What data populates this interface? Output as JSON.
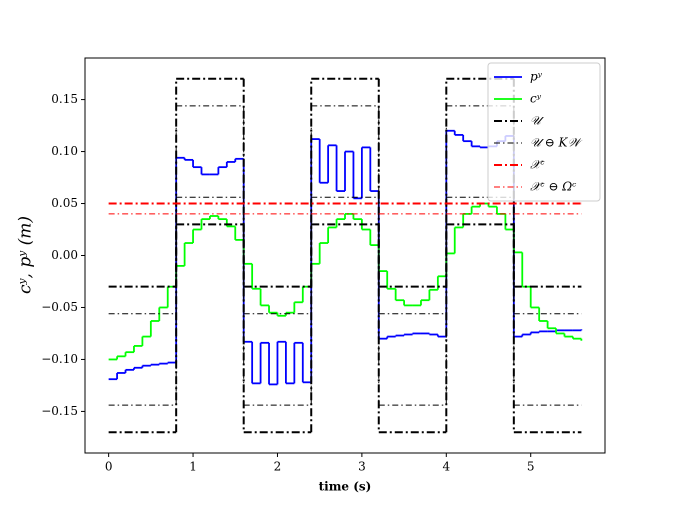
{
  "chart_data": {
    "type": "step",
    "xlabel": "time (s)",
    "ylabel": "cʸ, pʸ (m)",
    "xlim": [
      -0.28,
      5.88
    ],
    "ylim": [
      -0.19,
      0.19
    ],
    "xticks": [
      0,
      1,
      2,
      3,
      4,
      5
    ],
    "yticks": [
      {
        "value": -0.15,
        "label": "−0.15"
      },
      {
        "value": -0.1,
        "label": "−0.10"
      },
      {
        "value": -0.05,
        "label": "−0.05"
      },
      {
        "value": 0,
        "label": "0.00"
      },
      0.05,
      {
        "value": 0.1,
        "label": "0.10"
      },
      0.15
    ],
    "legend": "upper right",
    "x": [
      0,
      0.1,
      0.2,
      0.3,
      0.4,
      0.5,
      0.6,
      0.7,
      0.8,
      0.9,
      1.0,
      1.1,
      1.2,
      1.3,
      1.4,
      1.5,
      1.6,
      1.7,
      1.8,
      1.9,
      2.0,
      2.1,
      2.2,
      2.3,
      2.4,
      2.5,
      2.6,
      2.7,
      2.8,
      2.9,
      3.0,
      3.1,
      3.2,
      3.3,
      3.4,
      3.5,
      3.6,
      3.7,
      3.8,
      3.9,
      4.0,
      4.1,
      4.2,
      4.3,
      4.4,
      4.5,
      4.6,
      4.7,
      4.8,
      4.9,
      5.0,
      5.1,
      5.2,
      5.3,
      5.4,
      5.5,
      5.6
    ],
    "series": [
      {
        "name": "pʸ",
        "color": "#0000ff",
        "linestyle": "solid",
        "values": [
          -0.119,
          -0.113,
          -0.11,
          -0.108,
          -0.106,
          -0.105,
          -0.104,
          -0.103,
          0.094,
          0.092,
          0.085,
          0.078,
          0.078,
          0.085,
          0.09,
          0.093,
          -0.083,
          -0.123,
          -0.084,
          -0.124,
          -0.083,
          -0.123,
          -0.084,
          -0.122,
          0.112,
          0.07,
          0.106,
          0.062,
          0.1,
          0.055,
          0.104,
          0.062,
          -0.08,
          -0.078,
          -0.077,
          -0.076,
          -0.075,
          -0.075,
          -0.076,
          -0.078,
          0.12,
          0.116,
          0.11,
          0.105,
          0.104,
          0.105,
          0.11,
          0.115,
          -0.078,
          -0.076,
          -0.074,
          -0.073,
          -0.073,
          -0.072,
          -0.072,
          -0.072,
          -0.071
        ]
      },
      {
        "name": "cʸ",
        "color": "#00ff00",
        "linestyle": "solid",
        "values": [
          -0.1,
          -0.097,
          -0.093,
          -0.087,
          -0.078,
          -0.063,
          -0.05,
          -0.03,
          -0.01,
          0.012,
          0.025,
          0.035,
          0.038,
          0.035,
          0.028,
          0.015,
          -0.008,
          -0.032,
          -0.048,
          -0.055,
          -0.058,
          -0.055,
          -0.045,
          -0.03,
          -0.008,
          0.012,
          0.027,
          0.035,
          0.04,
          0.035,
          0.025,
          0.01,
          -0.015,
          -0.032,
          -0.043,
          -0.048,
          -0.048,
          -0.043,
          -0.033,
          -0.02,
          0.002,
          0.027,
          0.04,
          0.047,
          0.05,
          0.047,
          0.04,
          0.025,
          0.003,
          -0.03,
          -0.05,
          -0.063,
          -0.07,
          -0.075,
          -0.078,
          -0.08,
          -0.082
        ]
      },
      {
        "name": "𝒰",
        "color": "#000000",
        "linestyle": "dashdot-bold",
        "x": [
          0,
          0.8,
          1.6,
          2.4,
          3.2,
          4.0,
          4.8,
          5.6
        ],
        "values": [
          -0.03,
          0.17,
          -0.03,
          0.17,
          -0.03,
          0.17,
          -0.03,
          -0.03
        ]
      },
      {
        "color": "#000000",
        "linestyle": "dashdot-bold",
        "x": [
          0,
          0.8,
          1.6,
          2.4,
          3.2,
          4.0,
          4.8,
          5.6
        ],
        "values": [
          -0.17,
          0.03,
          -0.17,
          0.03,
          -0.17,
          0.03,
          -0.17,
          -0.17
        ]
      },
      {
        "name": "𝒰 ⊖ K𝒲",
        "color": "#000000",
        "linestyle": "dashdot-fine",
        "x": [
          0,
          0.8,
          1.6,
          2.4,
          3.2,
          4.0,
          4.8,
          5.6
        ],
        "values": [
          -0.056,
          0.144,
          -0.056,
          0.144,
          -0.056,
          0.144,
          -0.056,
          -0.056
        ]
      },
      {
        "color": "#000000",
        "linestyle": "dashdot-fine",
        "x": [
          0,
          0.8,
          1.6,
          2.4,
          3.2,
          4.0,
          4.8,
          5.6
        ],
        "values": [
          -0.144,
          0.056,
          -0.144,
          0.056,
          -0.144,
          0.056,
          -0.144,
          -0.144
        ]
      },
      {
        "name": "𝒳ᶜ",
        "color": "#ff0000",
        "linestyle": "dashdot-bold",
        "x": [
          0,
          5.6
        ],
        "values": [
          0.05,
          0.05
        ]
      },
      {
        "name": "𝒳ᶜ ⊖ Ωᶜ",
        "color": "#ff0000",
        "linestyle": "dashdot-fine",
        "x": [
          0,
          5.6
        ],
        "values": [
          0.04,
          0.04
        ]
      }
    ]
  }
}
